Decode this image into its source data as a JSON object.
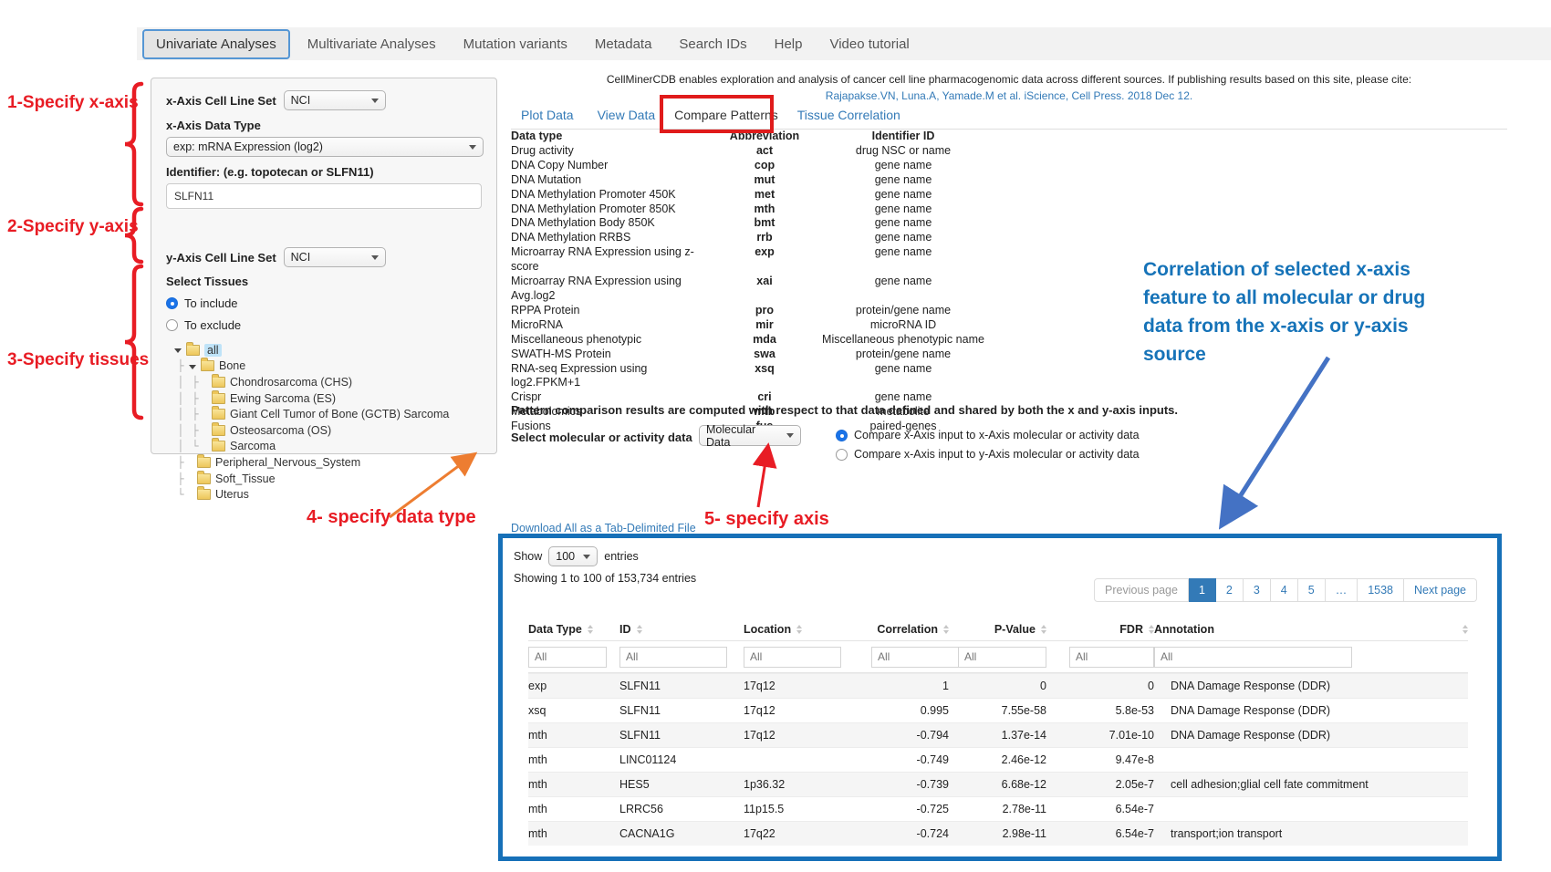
{
  "nav": {
    "tabs": [
      {
        "label": "Univariate Analyses",
        "active": true
      },
      {
        "label": "Multivariate Analyses",
        "active": false
      },
      {
        "label": "Mutation variants",
        "active": false
      },
      {
        "label": "Metadata",
        "active": false
      },
      {
        "label": "Search IDs",
        "active": false
      },
      {
        "label": "Help",
        "active": false
      },
      {
        "label": "Video tutorial",
        "active": false
      }
    ]
  },
  "annotations": {
    "step1": "1-Specify x-axis",
    "step2": "2-Specify y-axis",
    "step3": "3-Specify tissues",
    "step4": "4- specify data type",
    "step5": "5- specify axis",
    "blue_note": "Correlation of selected x-axis feature to all molecular or drug data from the x-axis or y-axis source",
    "red_color": "#e81c24",
    "orange_color": "#ed7d31",
    "blue_arrow_color": "#4472c4",
    "blue_note_color": "#1673b8"
  },
  "panel": {
    "x_cell_line_label": "x-Axis Cell Line Set",
    "x_cell_line_value": "NCI",
    "x_data_type_label": "x-Axis Data Type",
    "x_data_type_value": "exp: mRNA Expression (log2)",
    "identifier_label": "Identifier: (e.g. topotecan or SLFN11)",
    "identifier_value": "SLFN11",
    "y_cell_line_label": "y-Axis Cell Line Set",
    "y_cell_line_value": "NCI",
    "select_tissues_label": "Select Tissues",
    "include_label": "To include",
    "exclude_label": "To exclude",
    "tree": [
      {
        "label": "all",
        "level": 0,
        "selected": true,
        "expanded": true
      },
      {
        "label": "Bone",
        "level": 1,
        "expanded": true
      },
      {
        "label": "Chondrosarcoma (CHS)",
        "level": 2
      },
      {
        "label": "Ewing Sarcoma (ES)",
        "level": 2
      },
      {
        "label": "Giant Cell Tumor of Bone (GCTB) Sarcoma",
        "level": 2
      },
      {
        "label": "Osteosarcoma (OS)",
        "level": 2
      },
      {
        "label": "Sarcoma",
        "level": 2
      },
      {
        "label": "Peripheral_Nervous_System",
        "level": 1
      },
      {
        "label": "Soft_Tissue",
        "level": 1
      },
      {
        "label": "Uterus",
        "level": 1
      }
    ]
  },
  "main": {
    "citation_line1": "CellMinerCDB enables exploration and analysis of cancer cell line pharmacogenomic data across different sources. If publishing results based on this site, please cite:",
    "citation_line2": "Rajapakse.VN, Luna.A, Yamade.M et al. iScience, Cell Press. 2018 Dec 12.",
    "subtabs": [
      {
        "label": "Plot Data",
        "active": false
      },
      {
        "label": "View Data",
        "active": false
      },
      {
        "label": "Compare Patterns",
        "active": true
      },
      {
        "label": "Tissue Correlation",
        "active": false
      }
    ],
    "datatype_table": {
      "headers": [
        "Data type",
        "Abbreviation",
        "Identifier ID"
      ],
      "rows": [
        [
          "Drug activity",
          "act",
          "drug NSC or name"
        ],
        [
          "DNA Copy Number",
          "cop",
          "gene name"
        ],
        [
          "DNA Mutation",
          "mut",
          "gene name"
        ],
        [
          "DNA Methylation Promoter 450K",
          "met",
          "gene name"
        ],
        [
          "DNA Methylation Promoter 850K",
          "mth",
          "gene name"
        ],
        [
          "DNA Methylation Body 850K",
          "bmt",
          "gene name"
        ],
        [
          "DNA Methylation RRBS",
          "rrb",
          "gene name"
        ],
        [
          "Microarray RNA Expression using z-score",
          "exp",
          "gene name"
        ],
        [
          "Microarray RNA Expression using Avg.log2",
          "xai",
          "gene name"
        ],
        [
          "RPPA Protein",
          "pro",
          "protein/gene name"
        ],
        [
          "MicroRNA",
          "mir",
          "microRNA ID"
        ],
        [
          "Miscellaneous phenotypic",
          "mda",
          "Miscellaneous phenotypic name"
        ],
        [
          "SWATH-MS Protein",
          "swa",
          "protein/gene name"
        ],
        [
          "RNA-seq Expression using log2.FPKM+1",
          "xsq",
          "gene name"
        ],
        [
          "Crispr",
          "cri",
          "gene name"
        ],
        [
          "Metabolomics",
          "mtb",
          "metabolite"
        ],
        [
          "Fusions",
          "fus",
          "paired-genes"
        ]
      ]
    },
    "pattern_note": "Pattern comparison results are computed with respect to that data defined and shared by both the x and y-axis inputs.",
    "controls": {
      "select_label": "Select molecular or activity data",
      "select_value": "Molecular Data",
      "radio_x_label": "Compare x-Axis input to x-Axis molecular or activity data",
      "radio_y_label": "Compare x-Axis input to y-Axis molecular or activity data"
    },
    "download_link": "Download All as a Tab-Delimited File"
  },
  "results": {
    "show_label": "Show",
    "show_value": "100",
    "entries_label": "entries",
    "showing_text": "Showing 1 to 100 of 153,734 entries",
    "pagination": {
      "prev": "Previous page",
      "pages": [
        "1",
        "2",
        "3",
        "4",
        "5",
        "…",
        "1538"
      ],
      "active_page": "1",
      "next": "Next page"
    },
    "table": {
      "columns": [
        "Data Type",
        "ID",
        "Location",
        "Correlation",
        "P-Value",
        "FDR",
        "Annotation"
      ],
      "filter_placeholder": "All",
      "rows": [
        [
          "exp",
          "SLFN11",
          "17q12",
          "1",
          "0",
          "0",
          "DNA Damage Response (DDR)"
        ],
        [
          "xsq",
          "SLFN11",
          "17q12",
          "0.995",
          "7.55e-58",
          "5.8e-53",
          "DNA Damage Response (DDR)"
        ],
        [
          "mth",
          "SLFN11",
          "17q12",
          "-0.794",
          "1.37e-14",
          "7.01e-10",
          "DNA Damage Response (DDR)"
        ],
        [
          "mth",
          "LINC01124",
          "",
          "-0.749",
          "2.46e-12",
          "9.47e-8",
          ""
        ],
        [
          "mth",
          "HES5",
          "1p36.32",
          "-0.739",
          "6.68e-12",
          "2.05e-7",
          "cell adhesion;glial cell fate commitment"
        ],
        [
          "mth",
          "LRRC56",
          "11p15.5",
          "-0.725",
          "2.78e-11",
          "6.54e-7",
          ""
        ],
        [
          "mth",
          "CACNA1G",
          "17q22",
          "-0.724",
          "2.98e-11",
          "6.54e-7",
          "transport;ion transport"
        ]
      ]
    }
  }
}
